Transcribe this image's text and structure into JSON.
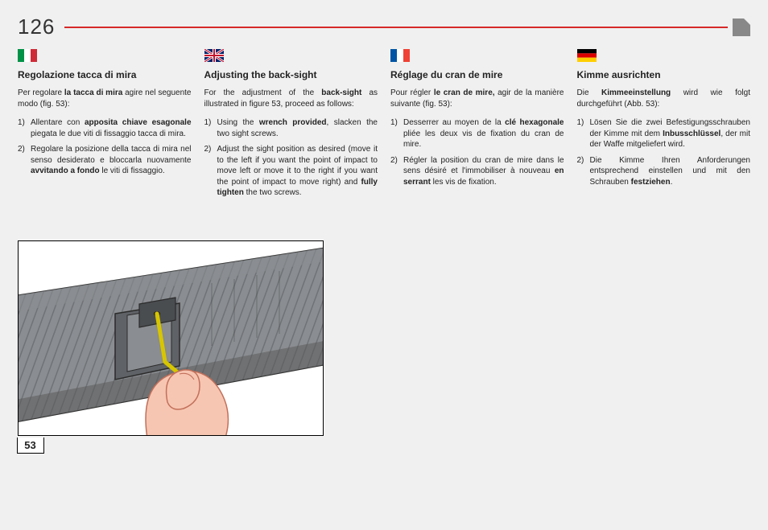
{
  "page_number": "126",
  "figure_number": "53",
  "columns": [
    {
      "lang": "it",
      "title": "Regolazione tacca di mira",
      "intro_html": "Per regolare <b>la tacca di mira</b> agire nel seguente modo (fig. 53):",
      "steps": [
        "Allentare con <b>apposita chiave esagonale</b> piegata le due viti di fissaggio tacca di mira.",
        "Regolare la posizione della tacca di mira nel senso desiderato e bloccarla nuovamente <b>avvitando a fondo</b> le viti di fissaggio."
      ]
    },
    {
      "lang": "en",
      "title": "Adjusting the back-sight",
      "intro_html": "For the adjustment of the <b>back-sight</b> as illustrated in figure 53, proceed as follows:",
      "steps": [
        "Using the <b>wrench provided</b>, slacken the two sight screws.",
        "Adjust the sight position as desired (move it to the left if you want the point of impact to move left or move it to the right if you want the point of impact to move right) and <b>fully tighten</b> the two screws."
      ]
    },
    {
      "lang": "fr",
      "title": "Réglage du cran de mire",
      "intro_html": "Pour régler <b>le cran de mire,</b> agir de la manière suivante (fig. 53):",
      "steps": [
        "Desserrer au moyen de la <b>clé hexagonale</b> pliée les deux vis de fixation du cran de mire.",
        "Régler la position du cran de mire dans le sens désiré et l'immobiliser à nouveau <b>en serrant</b> les vis de fixation."
      ]
    },
    {
      "lang": "de",
      "title": "Kimme ausrichten",
      "intro_html": "Die <b>Kimmeeinstellung</b> wird wie folgt durchgeführt (Abb. 53):",
      "steps": [
        "Lösen Sie die zwei Befestigungsschrauben der Kimme mit dem <b>Inbusschlüssel</b>, der mit der Waffe mitgeliefert wird.",
        "Die Kimme Ihren Anforderungen entsprechend einstellen und mit den Schrauben <b>festziehen</b>."
      ]
    }
  ],
  "flags": {
    "it": {
      "type": "tricolor-v",
      "colors": [
        "#009246",
        "#ffffff",
        "#ce2b37"
      ]
    },
    "en": {
      "type": "uk"
    },
    "fr": {
      "type": "tricolor-v",
      "colors": [
        "#0055a4",
        "#ffffff",
        "#ef4135"
      ]
    },
    "de": {
      "type": "tricolor-h",
      "colors": [
        "#000000",
        "#dd0000",
        "#ffce00"
      ]
    }
  },
  "figure": {
    "barrel_fill": "#8a8d91",
    "barrel_stroke": "#2b2b2b",
    "barrel_hatch": "#6f7276",
    "sight_fill": "#5f6266",
    "wrench_color": "#e6d400",
    "finger_fill": "#f7c6b2",
    "finger_stroke": "#c2705a",
    "bg": "#ffffff"
  }
}
